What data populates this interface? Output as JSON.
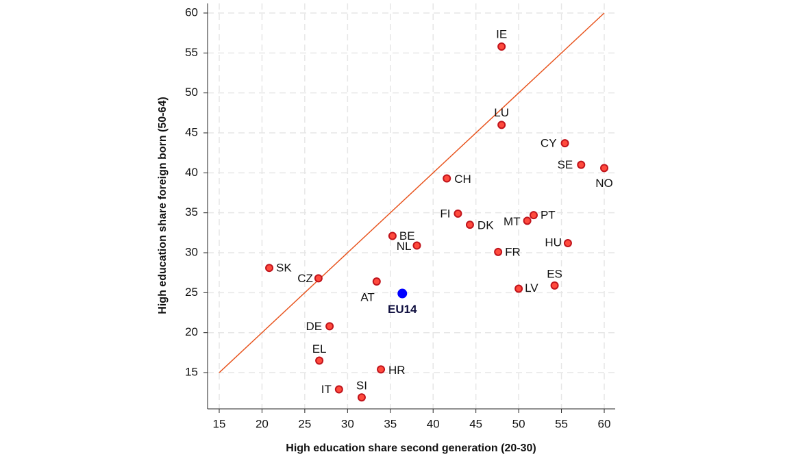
{
  "chart_data": {
    "type": "scatter",
    "xlabel": "High education share second generation (20-30)",
    "ylabel": "High education share foreign born (50-64)",
    "xlim": [
      13.64,
      61.28
    ],
    "ylim": [
      10.46,
      61.2
    ],
    "xticks": [
      15,
      20,
      25,
      30,
      35,
      40,
      45,
      50,
      55,
      60
    ],
    "yticks": [
      15,
      20,
      25,
      30,
      35,
      40,
      45,
      50,
      55,
      60
    ],
    "grid": true,
    "diagonal": {
      "x": [
        15,
        60
      ],
      "values": [
        15,
        60
      ],
      "color": "#e8541e"
    },
    "series": [
      {
        "color": "#ff4a3d",
        "labels": [
          "IE",
          "LU",
          "CY",
          "SE",
          "NO",
          "CH",
          "FI",
          "DK",
          "MT",
          "PT",
          "BE",
          "NL",
          "HU",
          "FR",
          "SK",
          "CZ",
          "AT",
          "LV",
          "ES",
          "DE",
          "EL",
          "HR",
          "IT",
          "SI"
        ],
        "x": [
          48.0,
          48.0,
          55.4,
          57.3,
          60.0,
          41.6,
          42.9,
          44.3,
          51.0,
          51.75,
          35.25,
          38.1,
          55.75,
          47.6,
          20.85,
          26.6,
          33.4,
          50.0,
          54.2,
          27.9,
          26.7,
          33.9,
          29.0,
          31.65
        ],
        "values": [
          55.8,
          46.0,
          43.7,
          41.0,
          40.6,
          39.3,
          34.9,
          33.5,
          34.0,
          34.7,
          32.1,
          30.9,
          31.2,
          30.1,
          28.1,
          26.8,
          26.4,
          25.5,
          25.9,
          20.8,
          16.5,
          15.4,
          12.9,
          11.9
        ]
      },
      {
        "color": "#0000ff",
        "labels": [
          "EU14"
        ],
        "x": [
          36.4
        ],
        "values": [
          24.9
        ]
      }
    ]
  }
}
